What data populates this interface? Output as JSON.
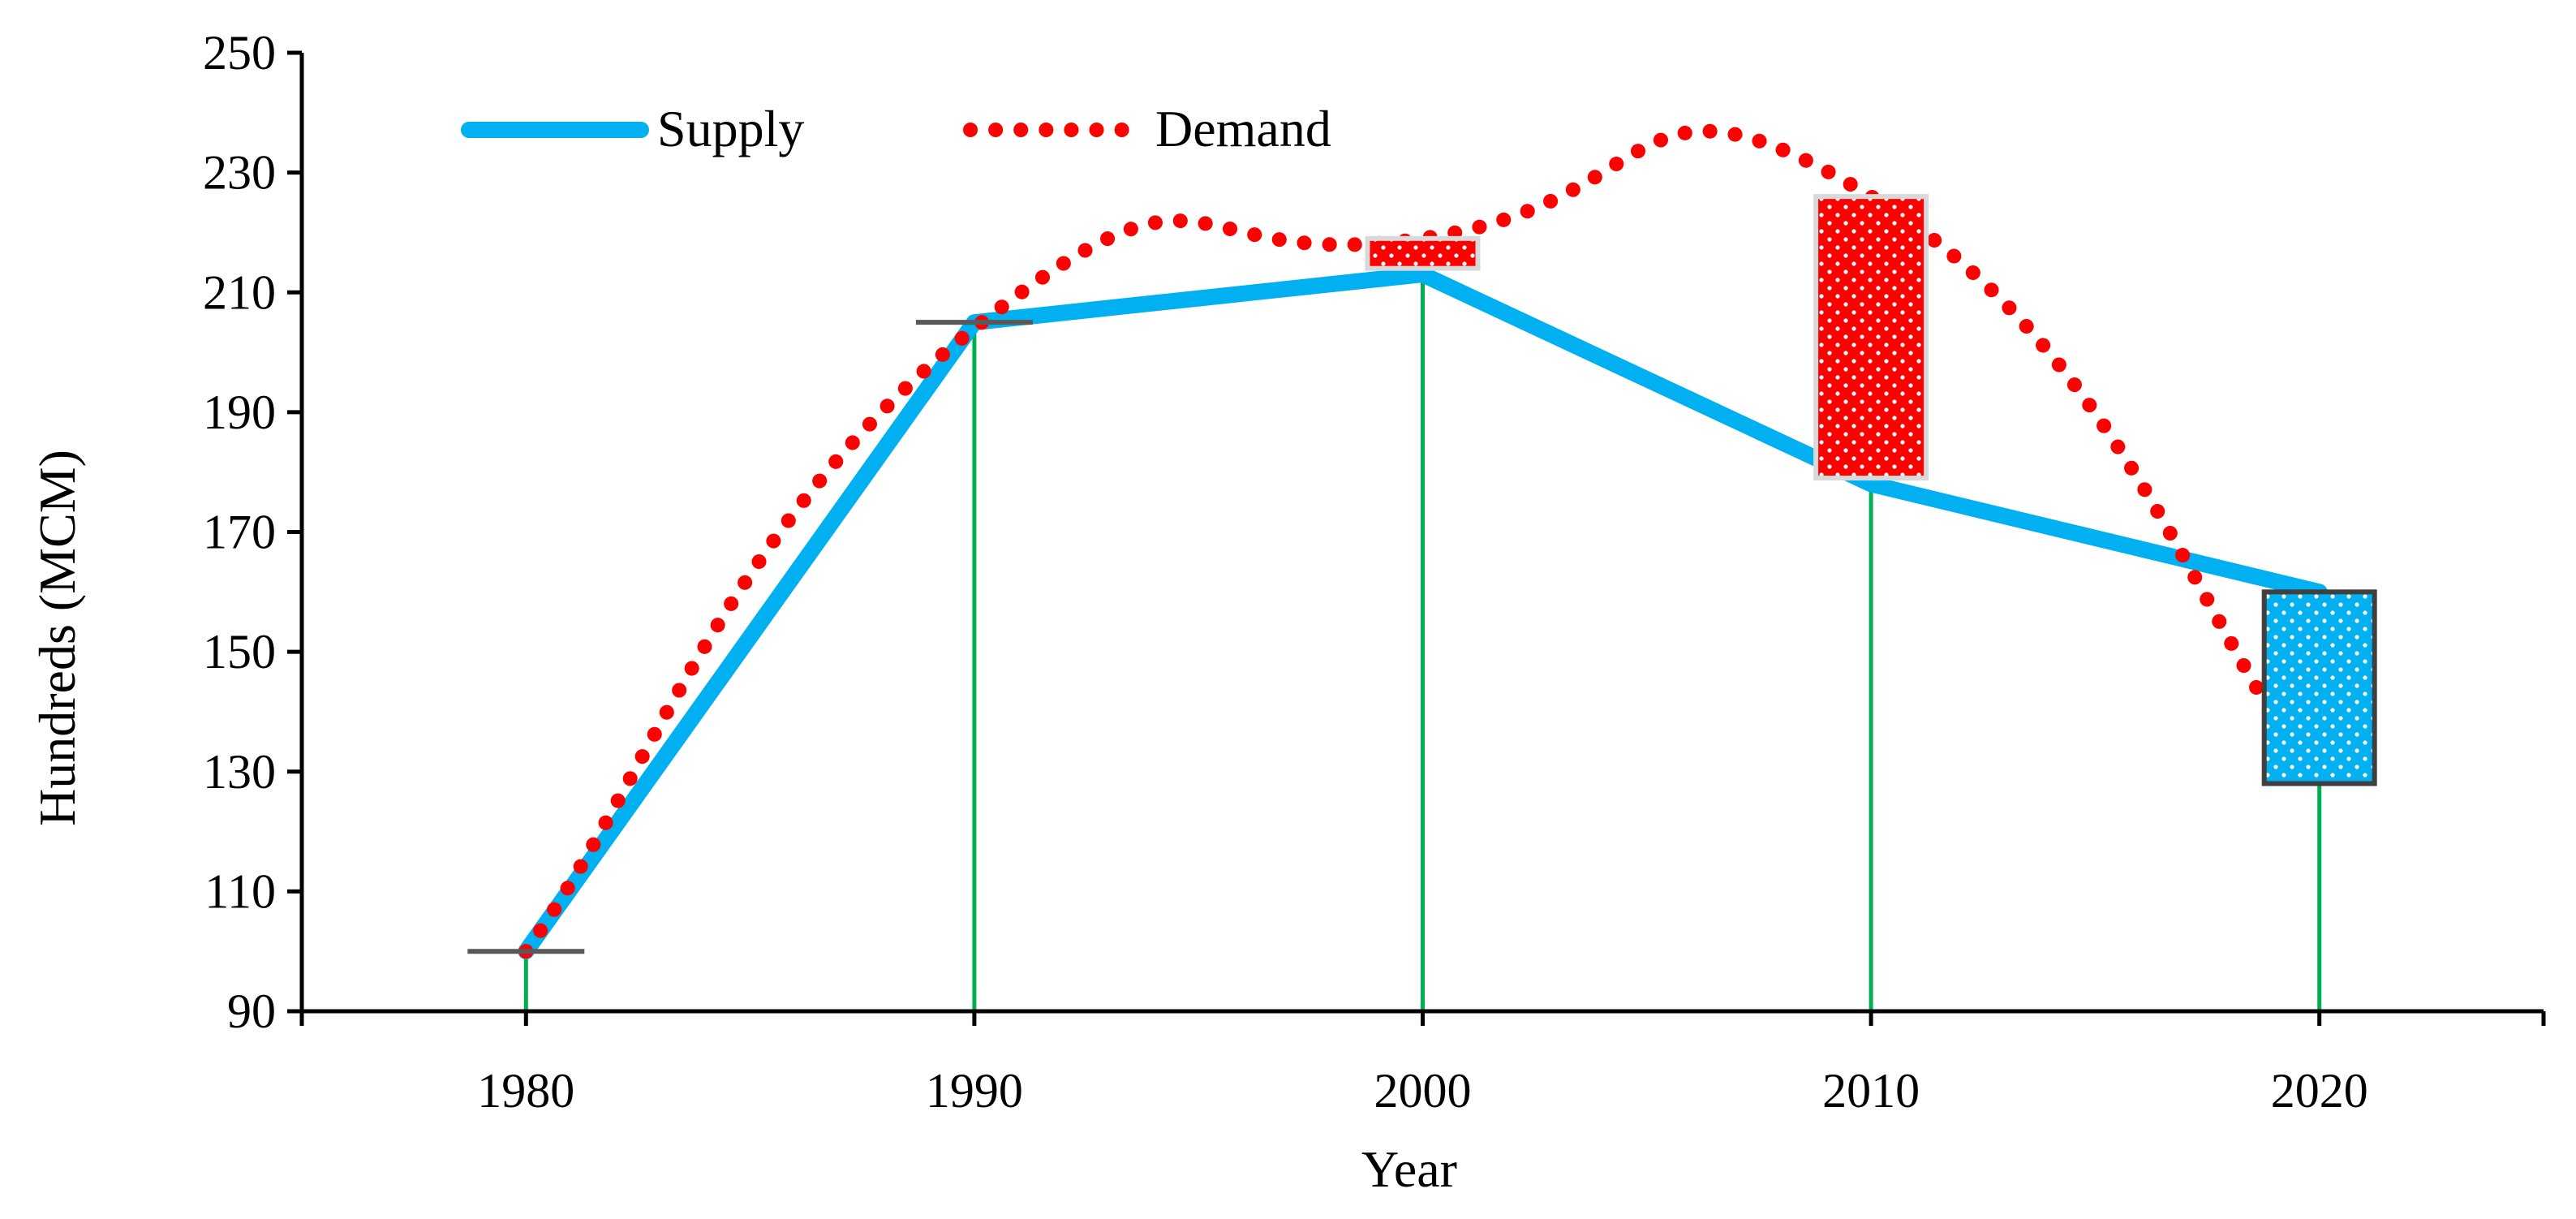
{
  "chart_data": {
    "type": "line",
    "title": "",
    "xlabel": "Year",
    "ylabel": "Hundreds (MCM)",
    "xlim": [
      1975,
      2025
    ],
    "ylim": [
      90,
      250
    ],
    "x_ticks": [
      1980,
      1990,
      2000,
      2010,
      2020
    ],
    "y_ticks": [
      90,
      110,
      130,
      150,
      170,
      190,
      210,
      230,
      250
    ],
    "x_tick_labels": [
      "1980",
      "1990",
      "2000",
      "2010",
      "2020"
    ],
    "y_tick_labels": [
      "90",
      "110",
      "130",
      "150",
      "170",
      "190",
      "210",
      "230",
      "250"
    ],
    "legend_position": "top-left",
    "colors": {
      "supply": "#00B0F0",
      "demand": "#FF0000",
      "drop_line": "#00B050",
      "axis": "#000000",
      "cap": "#595959",
      "box_border_gap": "#D9D9D9",
      "box_border_surplus": "#404040"
    },
    "series": [
      {
        "name": "Supply",
        "style": "solid",
        "x": [
          1980,
          1990,
          2000,
          2010,
          2020
        ],
        "values": [
          100,
          205,
          213,
          178,
          160
        ]
      },
      {
        "name": "Demand",
        "style": "dotted",
        "x": [
          1980,
          1990,
          2000,
          2010,
          2020
        ],
        "values": [
          100,
          204,
          219,
          226,
          128
        ]
      }
    ],
    "gap_boxes": [
      {
        "x": 2000,
        "low": 214,
        "high": 219,
        "type": "deficit"
      },
      {
        "x": 2010,
        "low": 179,
        "high": 226,
        "type": "deficit"
      },
      {
        "x": 2020,
        "low": 128,
        "high": 160,
        "type": "surplus"
      }
    ],
    "caps": [
      {
        "x": 1980,
        "value": 100
      },
      {
        "x": 1990,
        "value": 205
      }
    ],
    "drop_lines": [
      {
        "x": 1980,
        "top": 100
      },
      {
        "x": 1990,
        "top": 205
      },
      {
        "x": 2000,
        "top": 213
      },
      {
        "x": 2010,
        "top": 178
      },
      {
        "x": 2020,
        "top": 128
      }
    ]
  }
}
